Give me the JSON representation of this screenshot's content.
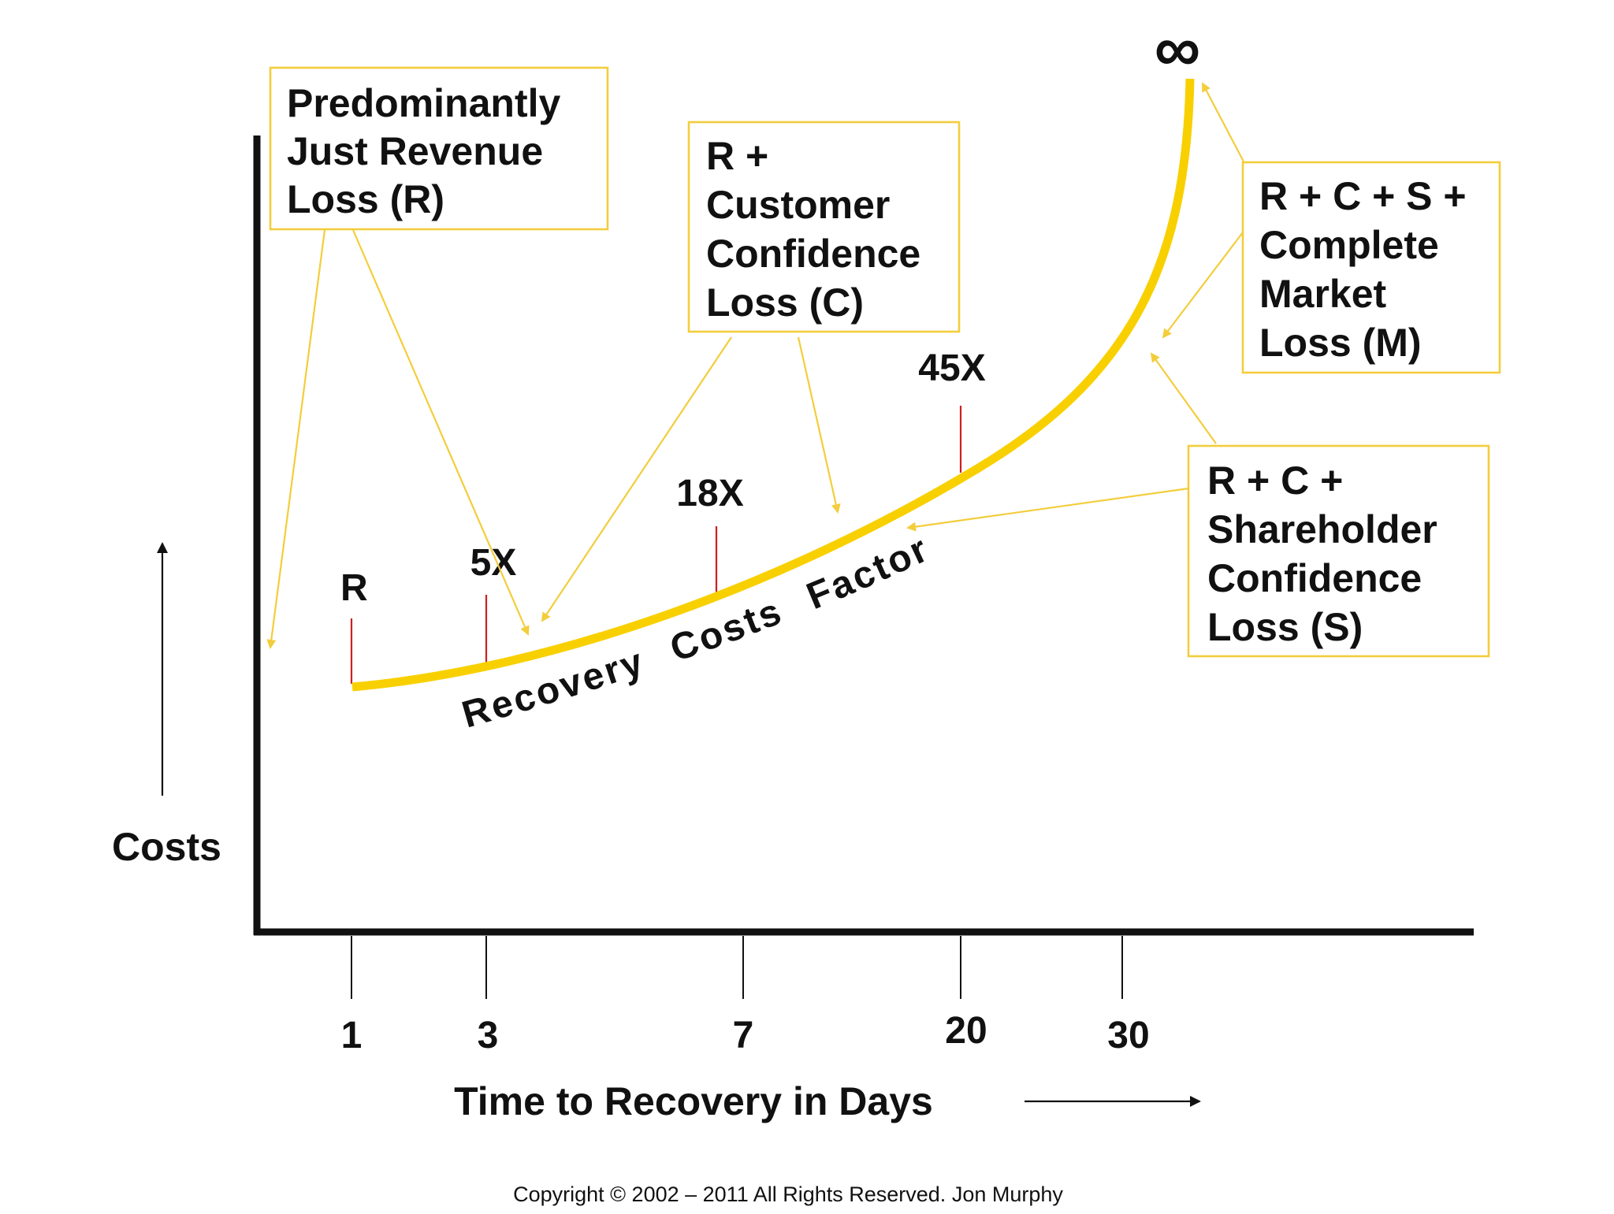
{
  "chart_data": {
    "type": "line",
    "title": "",
    "xlabel": "Time to Recovery in Days",
    "ylabel": "Costs",
    "x_ticks": [
      "1",
      "3",
      "7",
      "20",
      "30"
    ],
    "curve_label": "Recovery Costs Factor",
    "curve_end_symbol": "∞",
    "markers": [
      {
        "day": "1",
        "label": "R"
      },
      {
        "day": "3",
        "label": "5X"
      },
      {
        "day": "7",
        "label": "18X"
      },
      {
        "day": "20",
        "label": "45X"
      }
    ],
    "series": [
      {
        "values": [
          1,
          5,
          18,
          45
        ]
      }
    ],
    "annotations": [
      {
        "lines": [
          "Predominantly",
          "Just Revenue",
          "Loss (R)"
        ]
      },
      {
        "lines": [
          "R +",
          "Customer",
          "Confidence",
          "Loss (C)"
        ]
      },
      {
        "lines": [
          "R + C + S +",
          "Complete",
          "Market",
          "Loss (M)"
        ]
      },
      {
        "lines": [
          "R + C +",
          "Shareholder",
          "Confidence",
          "Loss (S)"
        ]
      }
    ],
    "colors": {
      "curve": "#f8d000",
      "boxes": "#f3cd3c",
      "markers": "#cc1f1f",
      "axes": "#111111"
    },
    "grid": false,
    "legend": "none"
  },
  "copyright": "Copyright © 2002 – 2011 All Rights Reserved.  Jon Murphy"
}
